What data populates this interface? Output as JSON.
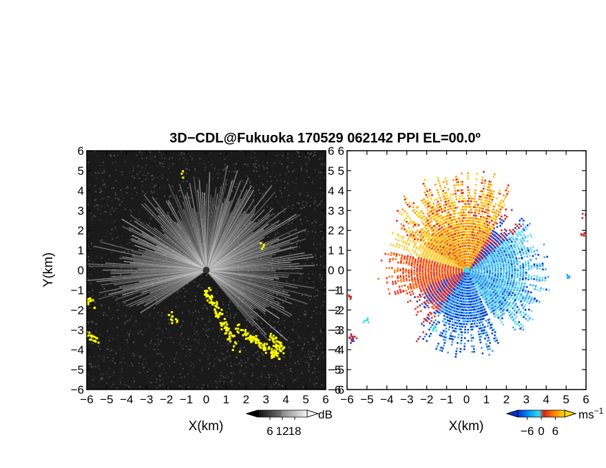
{
  "chart_data": [
    {
      "type": "heatmap",
      "panel": "left",
      "title": "3D−CDL@Fukuoka 170529 062142 PPI EL=00.0º",
      "xlabel": "X(km)",
      "ylabel": "Y(km)",
      "xlim": [
        -6,
        6
      ],
      "ylim": [
        -6,
        6
      ],
      "xticks": [
        "−6",
        "−5",
        "−4",
        "−3",
        "−2",
        "−1",
        "0",
        "1",
        "2",
        "3",
        "4",
        "5",
        "6"
      ],
      "yticks": [
        "−6",
        "−5",
        "−4",
        "−3",
        "−2",
        "−1",
        "0",
        "1",
        "2",
        "3",
        "4",
        "5",
        "6"
      ],
      "colorbar": {
        "ticks": [
          "6",
          "12",
          "18"
        ],
        "tick_values": [
          6,
          12,
          18
        ],
        "range": [
          0,
          24
        ],
        "unit": "dB",
        "colors": [
          "#000000",
          "#ffffff"
        ]
      },
      "highlight_color": "#ffff00",
      "background_color": "#1a1a1a"
    },
    {
      "type": "heatmap",
      "panel": "right",
      "xlabel": "X(km)",
      "ylabel": "",
      "xlim": [
        -6,
        6
      ],
      "ylim": [
        -6,
        6
      ],
      "xticks": [
        "−6",
        "−5",
        "−4",
        "−3",
        "−2",
        "−1",
        "0",
        "1",
        "2",
        "3",
        "4",
        "5",
        "6"
      ],
      "yticks": [
        "−6",
        "−5",
        "−4",
        "−3",
        "−2",
        "−1",
        "0",
        "1",
        "2",
        "3",
        "4",
        "5",
        "6"
      ],
      "colorbar": {
        "ticks": [
          "−6",
          "0",
          "6"
        ],
        "tick_values": [
          -6,
          0,
          6
        ],
        "range": [
          -10,
          10
        ],
        "unit": "ms",
        "unit_exp": "−1",
        "colors": [
          "#0033cc",
          "#0099ff",
          "#33ddee",
          "#cc2222",
          "#ff7700",
          "#ffdd00"
        ]
      },
      "background_color": "#ffffff"
    }
  ]
}
